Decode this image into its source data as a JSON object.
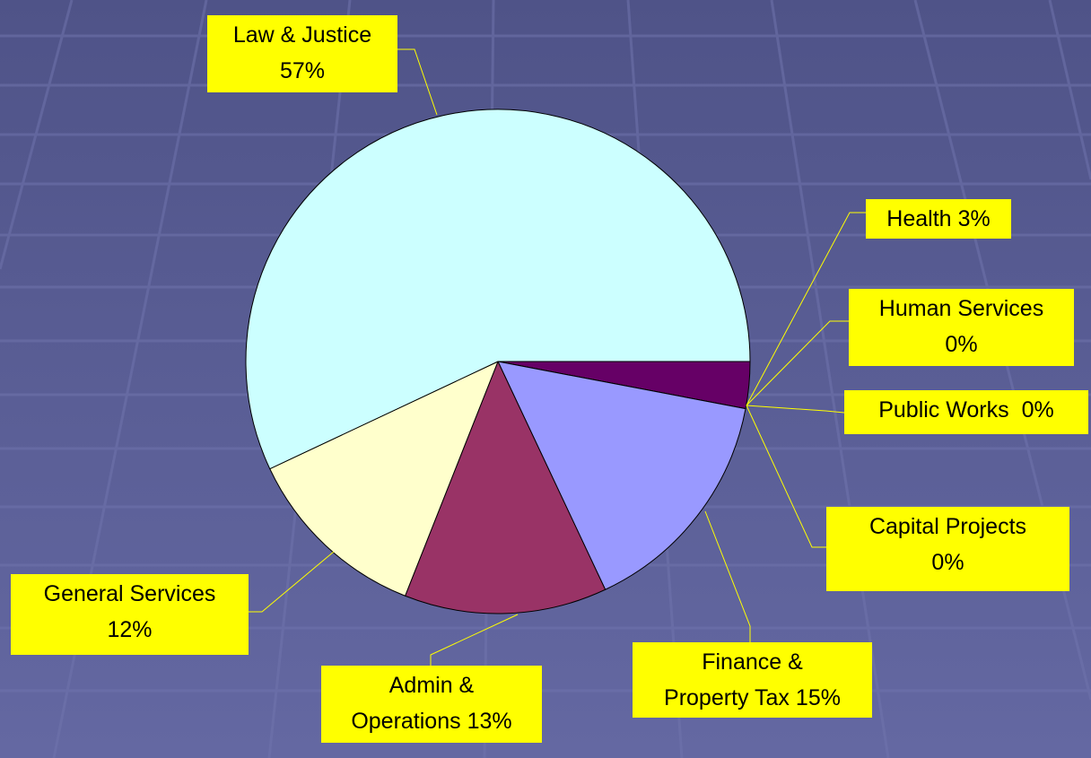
{
  "chart_data": {
    "type": "pie",
    "categories": [
      "Health",
      "Human Services",
      "Public Works",
      "Capital Projects",
      "Finance &\nProperty Tax",
      "Admin &\nOperations",
      "General Services",
      "Law & Justice"
    ],
    "values": [
      3,
      0,
      0,
      0,
      15,
      13,
      12,
      57
    ],
    "value_labels": [
      "3%",
      "0%",
      "0%",
      "0%",
      "15%",
      "13%",
      "12%",
      "57%"
    ],
    "colors": [
      "#660066",
      "#ff8080",
      "#0066cc",
      "#ccccff",
      "#9999ff",
      "#993366",
      "#ffffcc",
      "#ccffff"
    ]
  }
}
